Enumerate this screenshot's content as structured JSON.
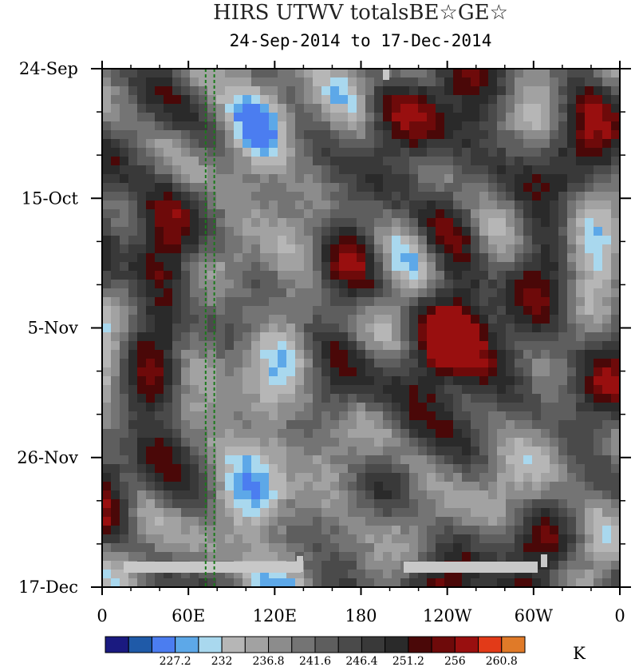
{
  "chart_data": {
    "type": "heatmap",
    "title": "HIRS UTWV totalsBE☆GE☆",
    "subtitle": "24-Sep-2014 to 17-Dec-2014",
    "xlabel": "",
    "ylabel": "",
    "x_ticks": [
      "0",
      "60E",
      "120E",
      "180",
      "120W",
      "60W",
      "0"
    ],
    "y_ticks": [
      "24-Sep",
      "15-Oct",
      "5-Nov",
      "26-Nov",
      "17-Dec"
    ],
    "x_range_deg_east": [
      0,
      360
    ],
    "y_range": [
      "24-Sep-2014",
      "17-Dec-2014"
    ],
    "reference_longitudes_deg_east": [
      72,
      78
    ],
    "colorbar": {
      "unit": "K",
      "labels": [
        "227.2",
        "232",
        "236.8",
        "241.6",
        "246.4",
        "251.2",
        "256",
        "260.8"
      ],
      "colors": [
        "#1a1a80",
        "#1f5aa8",
        "#4b7df0",
        "#5da8e8",
        "#a9d8ee",
        "#b6b6b6",
        "#a2a2a2",
        "#8c8c8c",
        "#747474",
        "#5e5e5e",
        "#4a4a4a",
        "#393939",
        "#2a2a2a",
        "#4a0808",
        "#6e0a0a",
        "#990f0f",
        "#e23a18",
        "#e07a28"
      ]
    },
    "missing_data_color": "#c8c8c8"
  }
}
